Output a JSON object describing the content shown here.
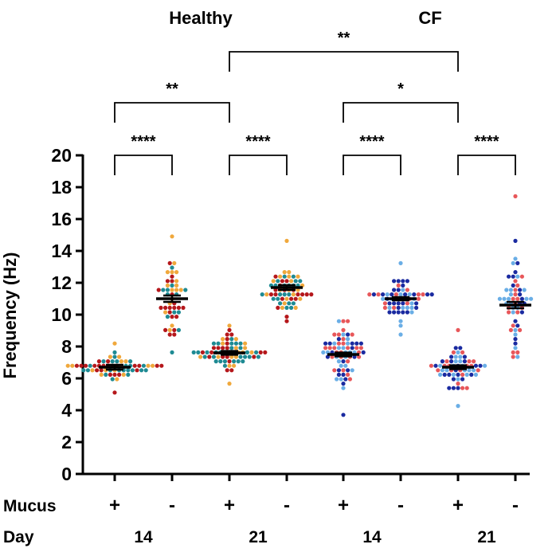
{
  "chart_data": {
    "type": "scatter",
    "subtype": "dot-plot with mean and SEM",
    "groups": [
      {
        "name": "Healthy"
      },
      {
        "name": "CF"
      }
    ],
    "ylabel": "Frequency (Hz)",
    "ylim": [
      0,
      20
    ],
    "yticks": [
      "0",
      "2",
      "4",
      "6",
      "8",
      "10",
      "12",
      "14",
      "16",
      "18",
      "20"
    ],
    "row_labels": {
      "mucus": "Mucus",
      "day": "Day"
    },
    "categories": [
      {
        "group": "Healthy",
        "mucus": "+",
        "day": "14",
        "mean": 6.7,
        "sem": 0.15,
        "min": 5.0,
        "max": 8.3,
        "n": 60,
        "colors": [
          "#f0a83c",
          "#b5171b",
          "#1e8a93"
        ]
      },
      {
        "group": "Healthy",
        "mucus": "-",
        "day": "14",
        "mean": 11.0,
        "sem": 0.2,
        "min": 7.6,
        "max": 15.0,
        "n": 48,
        "colors": [
          "#f0a83c",
          "#b5171b",
          "#1e8a93"
        ]
      },
      {
        "group": "Healthy",
        "mucus": "+",
        "day": "21",
        "mean": 7.6,
        "sem": 0.12,
        "min": 5.6,
        "max": 9.3,
        "n": 68,
        "colors": [
          "#f0a83c",
          "#b5171b",
          "#1e8a93"
        ]
      },
      {
        "group": "Healthy",
        "mucus": "-",
        "day": "21",
        "mean": 11.7,
        "sem": 0.15,
        "min": 9.6,
        "max": 14.7,
        "n": 60,
        "colors": [
          "#f0a83c",
          "#b5171b",
          "#1e8a93"
        ]
      },
      {
        "group": "CF",
        "mucus": "+",
        "day": "14",
        "mean": 7.5,
        "sem": 0.12,
        "min": 3.6,
        "max": 9.6,
        "n": 68,
        "colors": [
          "#e8575a",
          "#6aaee6",
          "#1a2aa0"
        ]
      },
      {
        "group": "CF",
        "mucus": "-",
        "day": "14",
        "mean": 11.0,
        "sem": 0.1,
        "min": 8.7,
        "max": 13.3,
        "n": 60,
        "colors": [
          "#e8575a",
          "#6aaee6",
          "#1a2aa0"
        ]
      },
      {
        "group": "CF",
        "mucus": "+",
        "day": "21",
        "mean": 6.7,
        "sem": 0.12,
        "min": 4.3,
        "max": 9.0,
        "n": 60,
        "colors": [
          "#e8575a",
          "#6aaee6",
          "#1a2aa0"
        ]
      },
      {
        "group": "CF",
        "mucus": "-",
        "day": "21",
        "mean": 10.6,
        "sem": 0.2,
        "min": 7.3,
        "max": 17.3,
        "n": 56,
        "colors": [
          "#e8575a",
          "#6aaee6",
          "#1a2aa0"
        ]
      }
    ],
    "day_labels": [
      {
        "label": "14",
        "between": [
          0,
          1
        ]
      },
      {
        "label": "21",
        "between": [
          2,
          3
        ]
      },
      {
        "label": "14",
        "between": [
          4,
          5
        ]
      },
      {
        "label": "21",
        "between": [
          6,
          7
        ]
      }
    ],
    "significance": [
      {
        "from": 0,
        "to": 1,
        "label": "****",
        "y": 20.0
      },
      {
        "from": 2,
        "to": 3,
        "label": "****",
        "y": 20.0
      },
      {
        "from": 4,
        "to": 5,
        "label": "****",
        "y": 20.0
      },
      {
        "from": 6,
        "to": 7,
        "label": "****",
        "y": 20.0
      },
      {
        "from": 0,
        "to": 2,
        "label": "**",
        "y": 23.3
      },
      {
        "from": 4,
        "to": 6,
        "label": "*",
        "y": 23.3
      },
      {
        "from": 2,
        "to": 6,
        "label": "**",
        "y": 26.5
      }
    ]
  }
}
